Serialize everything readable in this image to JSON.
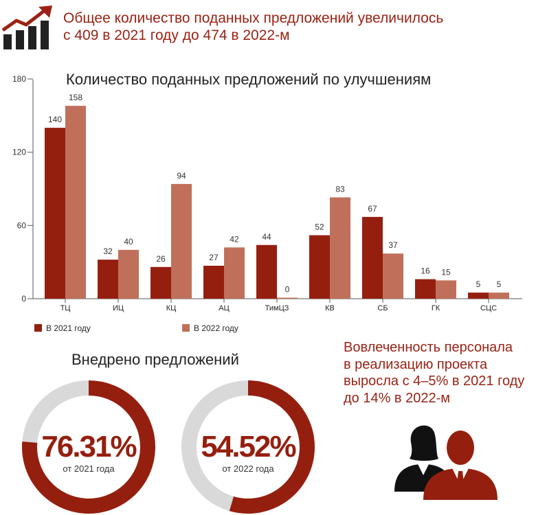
{
  "headline": {
    "line1": "Общее количество поданных предложений увеличилось",
    "line2": "с 409 в 2021 году до 474 в 2022-м",
    "icon": "growth-bars-arrow-icon"
  },
  "chart_data": [
    {
      "type": "bar",
      "title": "Количество поданных предложений по улучшениям",
      "categories": [
        "ТЦ",
        "ИЦ",
        "КЦ",
        "АЦ",
        "ТимЦЗ",
        "КВ",
        "СБ",
        "ГК",
        "СЦС"
      ],
      "series": [
        {
          "name": "В 2021 году",
          "color": "#951f0f",
          "values": [
            140,
            32,
            26,
            27,
            44,
            52,
            67,
            16,
            5
          ]
        },
        {
          "name": "В 2022 году",
          "color": "#c0705a",
          "values": [
            158,
            40,
            94,
            42,
            0,
            83,
            37,
            15,
            5
          ]
        }
      ],
      "yticks": [
        0,
        60,
        120,
        180
      ],
      "ylim": [
        0,
        180
      ],
      "legend_position": "bottom-left",
      "grid": false
    },
    {
      "type": "pie",
      "title": "Внедрено предложений",
      "donuts": [
        {
          "value": 76.31,
          "label": "76.31%",
          "caption": "от 2021 года"
        },
        {
          "value": 54.52,
          "label": "54.52%",
          "caption": "от 2022 года"
        }
      ],
      "fill_color": "#951f0f",
      "track_color": "#d9d9d9"
    }
  ],
  "engagement": {
    "line1": "Вовлеченность персонала",
    "line2": "в реализацию проекта",
    "line3": "выросла с 4–5% в 2021 году",
    "line4": "до 14% в 2022-м",
    "icon": "people-icon"
  }
}
